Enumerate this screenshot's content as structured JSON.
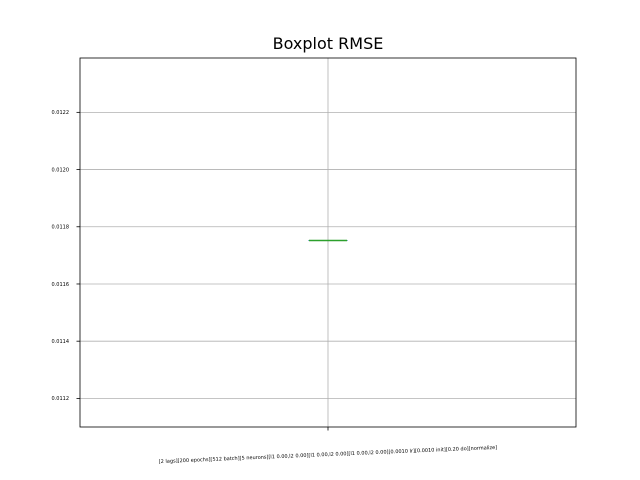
{
  "chart_data": {
    "type": "box",
    "title": "Boxplot RMSE",
    "xlabel": "",
    "ylabel": "",
    "categories": [
      "[2 lags][200 epochs][512 batch][5 neurons][l1 0.00,l2 0.00][l1 0.00,l2 0.00][l1 0.00,l2 0.00][0.0010 lr][0.0010 init][0.20 do][normalize]"
    ],
    "ylim": [
      0.0111,
      0.01239
    ],
    "yticks": [
      0.0112,
      0.0114,
      0.0116,
      0.0118,
      0.012,
      0.0122
    ],
    "ytick_labels": [
      "0.0112",
      "0.0114",
      "0.0116",
      "0.0118",
      "0.0120",
      "0.0122"
    ],
    "grid": true,
    "boxes": [
      {
        "min": 0.011752,
        "q1": 0.011752,
        "median": 0.011752,
        "q3": 0.011752,
        "max": 0.011752
      }
    ],
    "colors": {
      "median": "#2ca02c",
      "box": "#1f77b4",
      "grid": "#b0b0b0",
      "axes": "#000000"
    }
  }
}
